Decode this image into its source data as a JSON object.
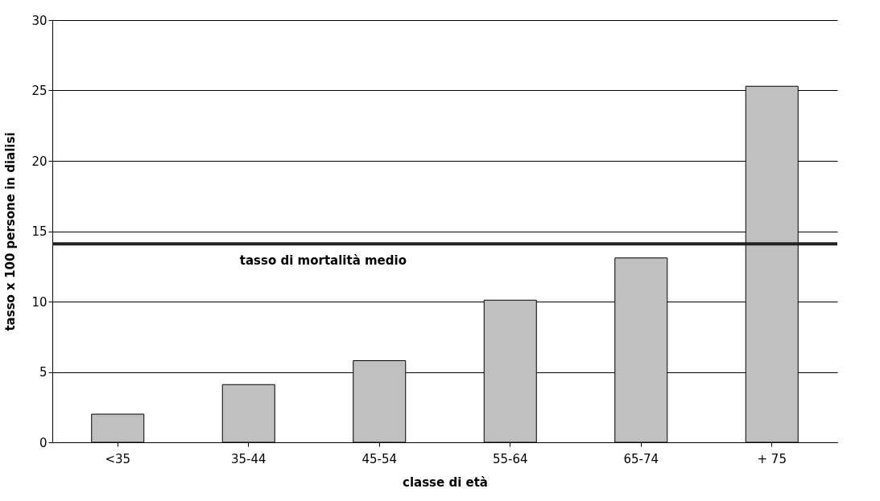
{
  "chart_data": {
    "type": "bar",
    "xlabel": "classe di età",
    "ylabel": "tasso x 100 persone in dialisi",
    "categories": [
      "<35",
      "35-44",
      "45-54",
      "55-64",
      "65-74",
      "+ 75"
    ],
    "values": [
      2.0,
      4.1,
      5.8,
      10.1,
      13.1,
      25.3
    ],
    "color": "#c0c0c0",
    "ylim": [
      0,
      30
    ],
    "yticks": [
      0,
      5,
      10,
      15,
      20,
      25,
      30
    ],
    "grid": "y",
    "ref_lines": [
      {
        "axis": "y",
        "value": 14.1,
        "label": "tasso di mortalità medio",
        "color": "#222222"
      }
    ]
  }
}
